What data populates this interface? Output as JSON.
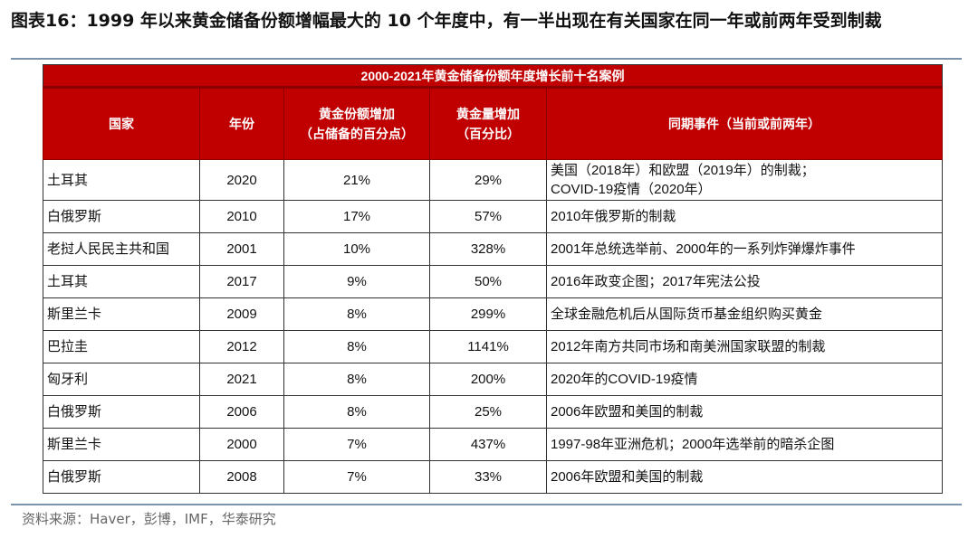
{
  "title": "图表16：1999 年以来黄金储备份额增幅最大的 10 个年度中，有一半出现在有关国家在同一年或前两年受到制裁",
  "table": {
    "caption": "2000-2021年黄金储备份额年度增长前十名案例",
    "headers": [
      [
        "国家",
        ""
      ],
      [
        "年份",
        ""
      ],
      [
        "黄金份额增加",
        "（占储备的百分点）"
      ],
      [
        "黄金量增加",
        "（百分比）"
      ],
      [
        "同期事件（当前或前两年）",
        ""
      ]
    ],
    "rows": [
      [
        "土耳其",
        "2020",
        "21%",
        "29%",
        "美国（2018年）和欧盟（2019年）的制裁；",
        "COVID-19疫情（2020年）"
      ],
      [
        "白俄罗斯",
        "2010",
        "17%",
        "57%",
        "2010年俄罗斯的制裁",
        ""
      ],
      [
        "老挝人民民主共和国",
        "2001",
        "10%",
        "328%",
        "2001年总统选举前、2000年的一系列炸弹爆炸事件",
        ""
      ],
      [
        "土耳其",
        "2017",
        "9%",
        "50%",
        "2016年政变企图；2017年宪法公投",
        ""
      ],
      [
        "斯里兰卡",
        "2009",
        "8%",
        "299%",
        "全球金融危机后从国际货币基金组织购买黄金",
        ""
      ],
      [
        "巴拉圭",
        "2012",
        "8%",
        "1141%",
        "2012年南方共同市场和南美洲国家联盟的制裁",
        ""
      ],
      [
        "匈牙利",
        "2021",
        "8%",
        "200%",
        "2020年的COVID-19疫情",
        ""
      ],
      [
        "白俄罗斯",
        "2006",
        "8%",
        "25%",
        "2006年欧盟和美国的制裁",
        ""
      ],
      [
        "斯里兰卡",
        "2000",
        "7%",
        "437%",
        "1997-98年亚洲危机；2000年选举前的暗杀企图",
        ""
      ],
      [
        "白俄罗斯",
        "2008",
        "7%",
        "33%",
        "2006年欧盟和美国的制裁",
        ""
      ]
    ]
  },
  "source": "资料来源：Haver，彭博，IMF，华泰研究",
  "colors": {
    "header_bg": "#c00000",
    "rule": "#7b93ad"
  }
}
